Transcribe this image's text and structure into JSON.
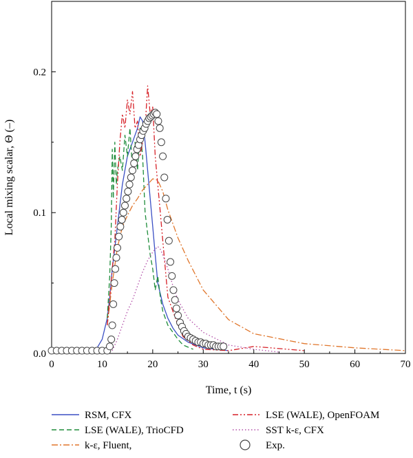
{
  "chart_data": {
    "type": "line",
    "xlabel": "Time, t (s)",
    "ylabel": "Local mixing scalar, Θ (–)",
    "xlim": [
      0,
      70
    ],
    "ylim": [
      0,
      0.25
    ],
    "x_ticks": [
      "0",
      "10",
      "20",
      "30",
      "40",
      "50",
      "60",
      "70"
    ],
    "y_ticks": [
      "0.0",
      "0.1",
      "0.2"
    ],
    "grid": false,
    "legend_position": "bottom",
    "series": [
      {
        "name": "RSM, CFX",
        "color": "#3a4fc4",
        "style": "solid",
        "x": [
          0,
          8,
          9,
          10,
          11,
          11.5,
          12,
          12.5,
          13,
          14,
          15,
          16,
          17,
          17.5,
          18,
          18.5,
          19,
          19.5,
          20,
          20.5,
          21,
          22,
          23,
          24,
          25,
          27,
          30,
          35
        ],
        "y": [
          0.002,
          0.002,
          0.004,
          0.01,
          0.025,
          0.04,
          0.06,
          0.075,
          0.09,
          0.12,
          0.14,
          0.15,
          0.16,
          0.168,
          0.165,
          0.15,
          0.13,
          0.11,
          0.09,
          0.07,
          0.05,
          0.035,
          0.025,
          0.018,
          0.013,
          0.008,
          0.004,
          0.002
        ]
      },
      {
        "name": "LSE (WALE), TrioCFD",
        "color": "#1e8c3a",
        "style": "dashed",
        "x": [
          11,
          11.5,
          11.8,
          12,
          12.2,
          12.5,
          12.8,
          13,
          13.5,
          14,
          14.5,
          15,
          15.5,
          16,
          16.5,
          17,
          17.5,
          18,
          18.5,
          19,
          19.5,
          20,
          20.5,
          21,
          21.5,
          22,
          23,
          24,
          25,
          26,
          28
        ],
        "y": [
          0.025,
          0.055,
          0.09,
          0.145,
          0.11,
          0.15,
          0.12,
          0.13,
          0.14,
          0.13,
          0.155,
          0.14,
          0.16,
          0.13,
          0.15,
          0.13,
          0.16,
          0.14,
          0.1,
          0.085,
          0.07,
          0.06,
          0.045,
          0.055,
          0.04,
          0.03,
          0.02,
          0.015,
          0.01,
          0.006,
          0.003
        ]
      },
      {
        "name": "k-ε, Fluent,",
        "color": "#e0752a",
        "style": "dashdot",
        "x": [
          11,
          12,
          13,
          14,
          15,
          16,
          17,
          18,
          19,
          20,
          21,
          22,
          23,
          25,
          27,
          30,
          35,
          40,
          50,
          60,
          70
        ],
        "y": [
          0.02,
          0.05,
          0.075,
          0.09,
          0.098,
          0.105,
          0.11,
          0.116,
          0.12,
          0.124,
          0.123,
          0.115,
          0.102,
          0.082,
          0.066,
          0.045,
          0.024,
          0.014,
          0.007,
          0.004,
          0.002
        ]
      },
      {
        "name": "LSE (WALE), OpenFOAM",
        "color": "#d61f26",
        "style": "dashdotdot",
        "x": [
          11,
          12,
          12.5,
          13,
          13.5,
          14,
          14.5,
          15,
          15.5,
          16,
          16.5,
          17,
          17.5,
          18,
          18.5,
          19,
          19.5,
          20,
          20.5,
          21,
          21.5,
          22,
          22.5,
          23,
          24,
          25,
          26,
          28,
          30,
          35,
          40,
          50
        ],
        "y": [
          0.02,
          0.06,
          0.08,
          0.12,
          0.15,
          0.17,
          0.16,
          0.18,
          0.17,
          0.186,
          0.16,
          0.165,
          0.14,
          0.15,
          0.16,
          0.19,
          0.17,
          0.175,
          0.14,
          0.12,
          0.1,
          0.08,
          0.06,
          0.04,
          0.03,
          0.02,
          0.012,
          0.006,
          0.003,
          0.002,
          0.005,
          0.002
        ]
      },
      {
        "name": "SST k-ε, CFX",
        "color": "#b04aa6",
        "style": "dotted",
        "x": [
          12,
          13,
          14,
          15,
          16,
          17,
          18,
          19,
          20,
          21,
          21.5,
          22,
          23,
          24,
          25,
          27,
          30,
          35,
          40,
          45
        ],
        "y": [
          0.002,
          0.01,
          0.02,
          0.03,
          0.038,
          0.048,
          0.058,
          0.066,
          0.072,
          0.076,
          0.074,
          0.07,
          0.06,
          0.048,
          0.038,
          0.025,
          0.015,
          0.006,
          0.003,
          0.001
        ]
      },
      {
        "name": "Exp.",
        "color": "#444444",
        "style": "circles",
        "x": [
          0,
          1,
          2,
          3,
          4,
          5,
          6,
          7,
          8,
          9,
          10,
          11,
          11.5,
          11.8,
          12,
          12.2,
          12.4,
          12.6,
          12.8,
          13,
          13.3,
          13.6,
          13.9,
          14.2,
          14.5,
          14.8,
          15.1,
          15.4,
          15.7,
          16,
          16.3,
          16.6,
          16.9,
          17.2,
          17.5,
          17.8,
          18.1,
          18.4,
          18.7,
          19,
          19.3,
          19.6,
          19.9,
          20.2,
          20.5,
          20.8,
          21.1,
          21.4,
          21.7,
          22,
          22.3,
          22.6,
          22.9,
          23.2,
          23.5,
          23.8,
          24.1,
          24.4,
          24.7,
          25,
          25.4,
          25.8,
          26.2,
          26.6,
          27,
          27.5,
          28,
          28.5,
          29,
          29.5,
          30,
          30.5,
          31,
          31.5,
          32,
          32.5,
          33,
          33.5,
          34
        ],
        "y": [
          0.002,
          0.002,
          0.002,
          0.002,
          0.002,
          0.002,
          0.002,
          0.002,
          0.002,
          0.002,
          0.002,
          0.002,
          0.005,
          0.01,
          0.02,
          0.035,
          0.05,
          0.06,
          0.068,
          0.075,
          0.083,
          0.09,
          0.095,
          0.1,
          0.105,
          0.11,
          0.115,
          0.12,
          0.125,
          0.13,
          0.135,
          0.14,
          0.145,
          0.148,
          0.152,
          0.155,
          0.158,
          0.16,
          0.163,
          0.165,
          0.167,
          0.168,
          0.169,
          0.17,
          0.171,
          0.17,
          0.165,
          0.16,
          0.15,
          0.14,
          0.125,
          0.11,
          0.095,
          0.08,
          0.065,
          0.055,
          0.045,
          0.038,
          0.032,
          0.027,
          0.022,
          0.019,
          0.016,
          0.014,
          0.012,
          0.011,
          0.01,
          0.009,
          0.008,
          0.008,
          0.007,
          0.007,
          0.006,
          0.006,
          0.006,
          0.005,
          0.005,
          0.005,
          0.005
        ]
      }
    ]
  }
}
